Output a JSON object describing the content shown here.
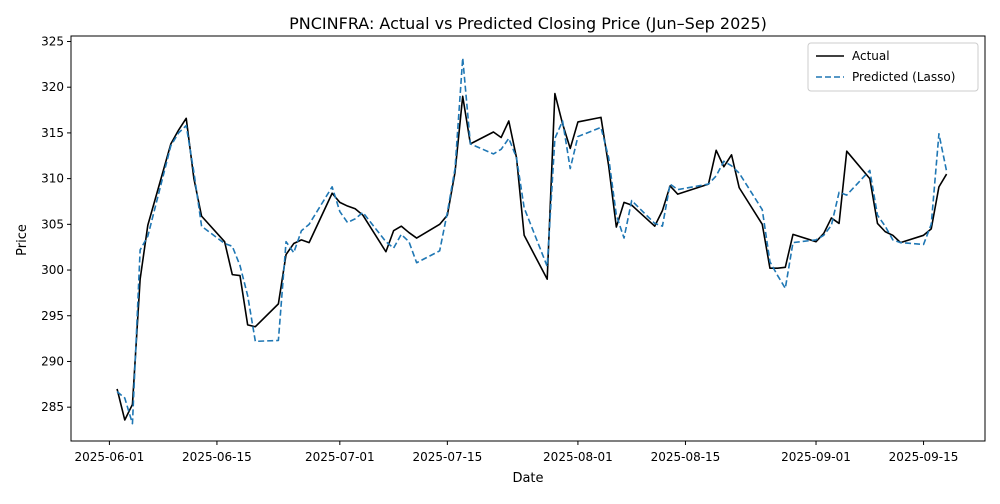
{
  "chart_data": {
    "type": "line",
    "title": "PNCINFRA: Actual vs Predicted Closing Price (Jun–Sep 2025)",
    "xlabel": "Date",
    "ylabel": "Price",
    "x_ticks": [
      "2025-06-01",
      "2025-06-15",
      "2025-07-01",
      "2025-07-15",
      "2025-08-01",
      "2025-08-15",
      "2025-09-01",
      "2025-09-15"
    ],
    "y_ticks": [
      285,
      290,
      295,
      300,
      305,
      310,
      315,
      320,
      325
    ],
    "xlim": [
      "2025-05-27",
      "2025-09-23"
    ],
    "ylim": [
      281.3,
      325.6
    ],
    "grid": false,
    "legend_position": "upper right",
    "x": [
      "2025-06-02",
      "2025-06-03",
      "2025-06-04",
      "2025-06-05",
      "2025-06-06",
      "2025-06-09",
      "2025-06-10",
      "2025-06-11",
      "2025-06-12",
      "2025-06-13",
      "2025-06-16",
      "2025-06-17",
      "2025-06-18",
      "2025-06-19",
      "2025-06-20",
      "2025-06-23",
      "2025-06-24",
      "2025-06-25",
      "2025-06-26",
      "2025-06-27",
      "2025-06-30",
      "2025-07-01",
      "2025-07-02",
      "2025-07-03",
      "2025-07-04",
      "2025-07-07",
      "2025-07-08",
      "2025-07-09",
      "2025-07-10",
      "2025-07-11",
      "2025-07-14",
      "2025-07-15",
      "2025-07-16",
      "2025-07-17",
      "2025-07-18",
      "2025-07-21",
      "2025-07-22",
      "2025-07-23",
      "2025-07-24",
      "2025-07-25",
      "2025-07-28",
      "2025-07-29",
      "2025-07-30",
      "2025-07-31",
      "2025-08-01",
      "2025-08-04",
      "2025-08-05",
      "2025-08-06",
      "2025-08-07",
      "2025-08-08",
      "2025-08-11",
      "2025-08-12",
      "2025-08-13",
      "2025-08-14",
      "2025-08-18",
      "2025-08-19",
      "2025-08-20",
      "2025-08-21",
      "2025-08-22",
      "2025-08-25",
      "2025-08-26",
      "2025-08-27",
      "2025-08-28",
      "2025-08-29",
      "2025-09-01",
      "2025-09-02",
      "2025-09-03",
      "2025-09-04",
      "2025-09-05",
      "2025-09-08",
      "2025-09-09",
      "2025-09-10",
      "2025-09-11",
      "2025-09-12",
      "2025-09-15",
      "2025-09-16",
      "2025-09-17",
      "2025-09-18"
    ],
    "series": [
      {
        "name": "Actual",
        "color": "#000000",
        "dash": "solid",
        "values": [
          287.0,
          283.6,
          285.3,
          299.0,
          304.9,
          313.8,
          315.3,
          316.6,
          310.0,
          305.9,
          303.1,
          299.5,
          299.4,
          294.0,
          293.8,
          296.3,
          301.7,
          302.9,
          303.3,
          303.0,
          308.4,
          307.4,
          307.0,
          306.7,
          306.0,
          302.0,
          304.3,
          304.8,
          304.1,
          303.5,
          305.0,
          306.0,
          310.7,
          319.0,
          313.8,
          315.1,
          314.5,
          316.3,
          312.3,
          303.8,
          299.0,
          319.3,
          316.0,
          313.3,
          316.2,
          316.7,
          311.4,
          304.7,
          307.4,
          307.1,
          304.8,
          306.5,
          309.2,
          308.3,
          309.4,
          313.1,
          311.3,
          312.6,
          309.0,
          305.0,
          300.2,
          300.2,
          300.3,
          303.9,
          303.1,
          304.0,
          305.7,
          305.1,
          313.0,
          310.0,
          305.1,
          304.2,
          303.8,
          303.0,
          303.8,
          304.5,
          309.1,
          310.5
        ]
      },
      {
        "name": "Predicted (Lasso)",
        "color": "#1f77b4",
        "dash": "dashed",
        "values": [
          286.7,
          286.0,
          283.2,
          302.2,
          303.7,
          313.6,
          315.0,
          315.8,
          310.7,
          304.8,
          302.9,
          302.6,
          300.5,
          297.2,
          292.2,
          292.3,
          303.1,
          301.9,
          304.3,
          305.0,
          309.1,
          306.4,
          305.2,
          305.6,
          306.3,
          303.1,
          302.4,
          303.9,
          303.1,
          300.8,
          302.1,
          306.3,
          311.1,
          323.2,
          313.8,
          312.7,
          313.2,
          314.4,
          312.3,
          306.8,
          300.4,
          314.4,
          316.3,
          311.1,
          314.6,
          315.6,
          312.3,
          306.0,
          303.5,
          307.6,
          305.1,
          304.8,
          309.4,
          308.8,
          309.4,
          310.3,
          311.9,
          311.4,
          310.6,
          306.6,
          300.9,
          299.4,
          298.0,
          303.0,
          303.3,
          303.8,
          304.9,
          308.5,
          308.2,
          310.9,
          306.0,
          304.8,
          303.3,
          303.0,
          302.8,
          305.0,
          314.9,
          310.8
        ]
      }
    ]
  }
}
